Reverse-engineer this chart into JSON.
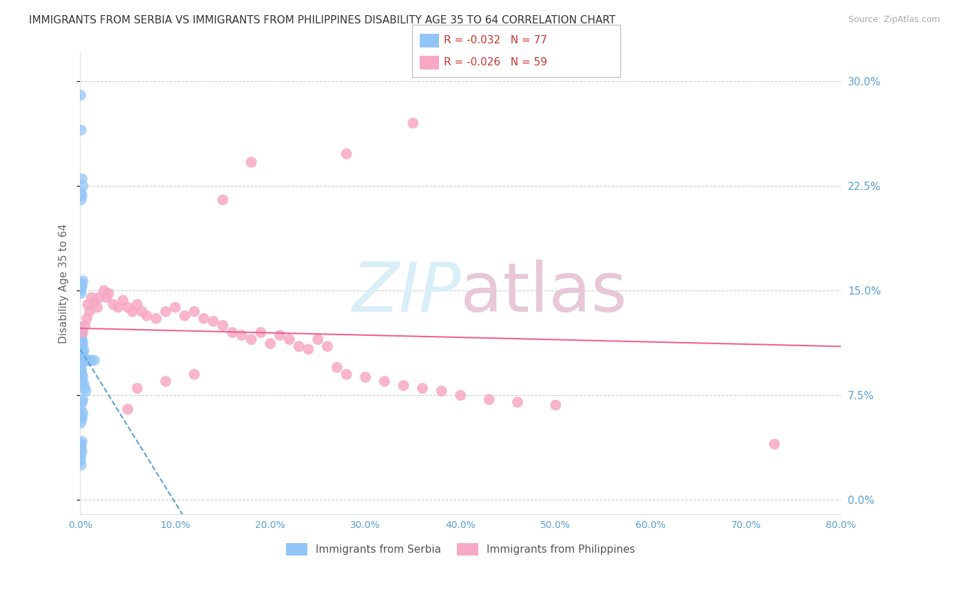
{
  "title": "IMMIGRANTS FROM SERBIA VS IMMIGRANTS FROM PHILIPPINES DISABILITY AGE 35 TO 64 CORRELATION CHART",
  "source": "Source: ZipAtlas.com",
  "ylabel": "Disability Age 35 to 64",
  "xlim": [
    0.0,
    0.8
  ],
  "ylim": [
    -0.01,
    0.32
  ],
  "yticks": [
    0.0,
    0.075,
    0.15,
    0.225,
    0.3
  ],
  "ytick_labels": [
    "0.0%",
    "7.5%",
    "15.0%",
    "22.5%",
    "30.0%"
  ],
  "xticks": [
    0.0,
    0.1,
    0.2,
    0.3,
    0.4,
    0.5,
    0.6,
    0.7,
    0.8
  ],
  "xtick_labels": [
    "0.0%",
    "10.0%",
    "20.0%",
    "30.0%",
    "40.0%",
    "50.0%",
    "60.0%",
    "70.0%",
    "80.0%"
  ],
  "serbia_color": "#92c5f7",
  "philippines_color": "#f7a8c4",
  "serbia_line_color": "#5a9fd4",
  "philippines_line_color": "#f06090",
  "serbia_R": -0.032,
  "serbia_N": 77,
  "philippines_R": -0.026,
  "philippines_N": 59,
  "serbia_x": [
    0.0005,
    0.0005,
    0.0005,
    0.0005,
    0.0005,
    0.0005,
    0.0005,
    0.0005,
    0.0005,
    0.0005,
    0.001,
    0.001,
    0.001,
    0.001,
    0.001,
    0.001,
    0.001,
    0.001,
    0.001,
    0.001,
    0.0015,
    0.0015,
    0.0015,
    0.0015,
    0.0015,
    0.0015,
    0.0015,
    0.002,
    0.002,
    0.002,
    0.002,
    0.002,
    0.002,
    0.003,
    0.003,
    0.003,
    0.003,
    0.004,
    0.004,
    0.004,
    0.005,
    0.005,
    0.006,
    0.006,
    0.007,
    0.008,
    0.009,
    0.01,
    0.012,
    0.015,
    0.0005,
    0.001,
    0.001,
    0.0015,
    0.002,
    0.003,
    0.0005,
    0.001,
    0.002,
    0.003,
    0.001,
    0.001,
    0.002,
    0.001,
    0.002,
    0.003,
    0.0005,
    0.001,
    0.002,
    0.003,
    0.001,
    0.0005,
    0.001,
    0.002,
    0.001,
    0.001,
    0.002
  ],
  "serbia_y": [
    0.1,
    0.102,
    0.105,
    0.108,
    0.11,
    0.112,
    0.115,
    0.118,
    0.12,
    0.095,
    0.1,
    0.103,
    0.106,
    0.109,
    0.112,
    0.115,
    0.118,
    0.121,
    0.124,
    0.097,
    0.1,
    0.104,
    0.108,
    0.112,
    0.116,
    0.12,
    0.093,
    0.1,
    0.105,
    0.11,
    0.115,
    0.09,
    0.085,
    0.1,
    0.106,
    0.112,
    0.088,
    0.1,
    0.107,
    0.083,
    0.1,
    0.08,
    0.1,
    0.078,
    0.1,
    0.1,
    0.1,
    0.1,
    0.1,
    0.1,
    0.15,
    0.148,
    0.152,
    0.155,
    0.153,
    0.157,
    0.29,
    0.265,
    0.23,
    0.225,
    0.215,
    0.22,
    0.218,
    0.065,
    0.07,
    0.072,
    0.055,
    0.06,
    0.058,
    0.062,
    0.04,
    0.028,
    0.032,
    0.035,
    0.025,
    0.038,
    0.042
  ],
  "philippines_x": [
    0.003,
    0.005,
    0.007,
    0.008,
    0.01,
    0.012,
    0.015,
    0.018,
    0.02,
    0.025,
    0.028,
    0.03,
    0.035,
    0.04,
    0.045,
    0.05,
    0.055,
    0.06,
    0.065,
    0.07,
    0.08,
    0.09,
    0.1,
    0.11,
    0.12,
    0.13,
    0.14,
    0.15,
    0.16,
    0.17,
    0.18,
    0.19,
    0.2,
    0.21,
    0.22,
    0.23,
    0.24,
    0.25,
    0.26,
    0.27,
    0.28,
    0.3,
    0.32,
    0.34,
    0.36,
    0.38,
    0.4,
    0.43,
    0.46,
    0.5,
    0.35,
    0.28,
    0.18,
    0.15,
    0.12,
    0.09,
    0.06,
    0.73,
    0.05
  ],
  "philippines_y": [
    0.12,
    0.125,
    0.13,
    0.14,
    0.135,
    0.145,
    0.142,
    0.138,
    0.145,
    0.15,
    0.145,
    0.148,
    0.14,
    0.138,
    0.143,
    0.138,
    0.135,
    0.14,
    0.135,
    0.132,
    0.13,
    0.135,
    0.138,
    0.132,
    0.135,
    0.13,
    0.128,
    0.125,
    0.12,
    0.118,
    0.115,
    0.12,
    0.112,
    0.118,
    0.115,
    0.11,
    0.108,
    0.115,
    0.11,
    0.095,
    0.09,
    0.088,
    0.085,
    0.082,
    0.08,
    0.078,
    0.075,
    0.072,
    0.07,
    0.068,
    0.27,
    0.248,
    0.242,
    0.215,
    0.09,
    0.085,
    0.08,
    0.04,
    0.065
  ],
  "background_color": "#ffffff",
  "grid_color": "#cccccc",
  "title_fontsize": 11,
  "axis_label_color": "#5a9fd4",
  "watermark_color": "#d8eef9",
  "watermark_fontsize": 72
}
